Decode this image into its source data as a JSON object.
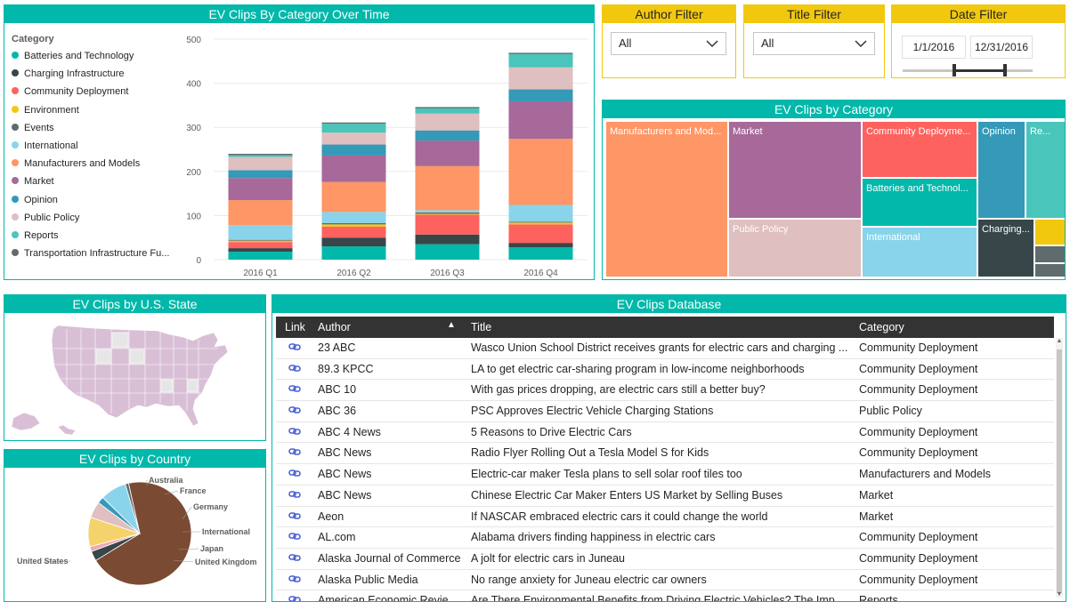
{
  "colors": {
    "accent": "#01b8aa",
    "filter_accent": "#f2c80f",
    "header_dark": "#333333",
    "link": "#4a5ed6"
  },
  "time_chart": {
    "title": "EV Clips By Category Over Time",
    "legend_title": "Category",
    "categories": [
      {
        "name": "Batteries and Technology",
        "color": "#01b8aa"
      },
      {
        "name": "Charging Infrastructure",
        "color": "#374649"
      },
      {
        "name": "Community Deployment",
        "color": "#fd625e"
      },
      {
        "name": "Environment",
        "color": "#f2c80f"
      },
      {
        "name": "Events",
        "color": "#5f6b6d"
      },
      {
        "name": "International",
        "color": "#8ad4eb"
      },
      {
        "name": "Manufacturers and Models",
        "color": "#fe9666"
      },
      {
        "name": "Market",
        "color": "#a66999"
      },
      {
        "name": "Opinion",
        "color": "#3599b8"
      },
      {
        "name": "Public Policy",
        "color": "#dfbfbf"
      },
      {
        "name": "Reports",
        "color": "#4ac5bb"
      },
      {
        "name": "Transportation Infrastructure Fu...",
        "color": "#5f6b6d"
      }
    ]
  },
  "chart_data": {
    "type": "bar",
    "stacked": true,
    "title": "EV Clips By Category Over Time",
    "legend_title": "Category",
    "categories": [
      "2016 Q1",
      "2016 Q2",
      "2016 Q3",
      "2016 Q4"
    ],
    "ylim": [
      0,
      500
    ],
    "yticks": [
      0,
      100,
      200,
      300,
      400,
      500
    ],
    "grid": true,
    "legend_position": "left",
    "series": [
      {
        "name": "Batteries and Technology",
        "values": [
          18,
          30,
          35,
          28
        ]
      },
      {
        "name": "Charging Infrastructure",
        "values": [
          8,
          20,
          22,
          10
        ]
      },
      {
        "name": "Community Deployment",
        "values": [
          14,
          25,
          45,
          42
        ]
      },
      {
        "name": "Environment",
        "values": [
          3,
          5,
          2,
          4
        ]
      },
      {
        "name": "Events",
        "values": [
          2,
          3,
          3,
          2
        ]
      },
      {
        "name": "International",
        "values": [
          33,
          25,
          5,
          38
        ]
      },
      {
        "name": "Manufacturers and Models",
        "values": [
          57,
          68,
          100,
          150
        ]
      },
      {
        "name": "Market",
        "values": [
          50,
          60,
          58,
          85
        ]
      },
      {
        "name": "Opinion",
        "values": [
          18,
          25,
          23,
          27
        ]
      },
      {
        "name": "Public Policy",
        "values": [
          30,
          27,
          38,
          50
        ]
      },
      {
        "name": "Reports",
        "values": [
          4,
          20,
          12,
          30
        ]
      },
      {
        "name": "Transportation Infrastructure Fu...",
        "values": [
          3,
          3,
          3,
          3
        ]
      }
    ]
  },
  "filters": {
    "author": {
      "title": "Author Filter",
      "value": "All"
    },
    "title": {
      "title": "Title Filter",
      "value": "All"
    },
    "date": {
      "title": "Date Filter",
      "start": "1/1/2016",
      "end": "12/31/2016",
      "range_start_fraction": 0.4,
      "range_end_fraction": 0.79
    }
  },
  "treemap": {
    "title": "EV Clips by Category",
    "tiles": [
      {
        "label": "Manufacturers and Mod...",
        "color": "#fe9666"
      },
      {
        "label": "Market",
        "color": "#a66999"
      },
      {
        "label": "Public Policy",
        "color": "#dfbfbf"
      },
      {
        "label": "Community Deployme...",
        "color": "#fd625e"
      },
      {
        "label": "Batteries and Technol...",
        "color": "#01b8aa"
      },
      {
        "label": "International",
        "color": "#8ad4eb"
      },
      {
        "label": "Opinion",
        "color": "#3599b8"
      },
      {
        "label": "Re...",
        "color": "#4ac5bb"
      },
      {
        "label": "Charging...",
        "color": "#374649"
      },
      {
        "label": "",
        "color": "#f2c80f"
      },
      {
        "label": "",
        "color": "#5f6b6d"
      },
      {
        "label": "",
        "color": "#5f6b6d"
      }
    ]
  },
  "state_map": {
    "title": "EV Clips by U.S. State",
    "fill_color": "#d9bfd6",
    "empty_color": "#e6e6e6"
  },
  "country_pie": {
    "title": "EV Clips by Country",
    "slices": [
      {
        "name": "United States",
        "value": 68,
        "color": "#7b4a33"
      },
      {
        "name": "United Kingdom",
        "value": 3,
        "color": "#374649"
      },
      {
        "name": "Japan",
        "value": 1.5,
        "color": "#f4a5b3"
      },
      {
        "name": "International",
        "value": 9,
        "color": "#f5d36c"
      },
      {
        "name": "Germany",
        "value": 5,
        "color": "#dfbfbf"
      },
      {
        "name": "France",
        "value": 2,
        "color": "#3599b8"
      },
      {
        "name": "Australia",
        "value": 8,
        "color": "#8ad4eb"
      },
      {
        "name": "",
        "value": 1,
        "color": "#5f6b6d"
      }
    ]
  },
  "database": {
    "title": "EV Clips Database",
    "columns": {
      "link": "Link",
      "author": "Author",
      "title": "Title",
      "category": "Category"
    },
    "sort_indicator": "▲",
    "rows": [
      {
        "author": "23 ABC",
        "title": "Wasco Union School District receives grants for electric cars and charging ...",
        "category": "Community Deployment"
      },
      {
        "author": "89.3 KPCC",
        "title": "LA to get electric car-sharing program in low-income neighborhoods",
        "category": "Community Deployment"
      },
      {
        "author": "ABC 10",
        "title": "With gas prices dropping, are electric cars still a better buy?",
        "category": "Community Deployment"
      },
      {
        "author": "ABC 36",
        "title": "PSC Approves Electric Vehicle Charging Stations",
        "category": "Public Policy"
      },
      {
        "author": "ABC 4 News",
        "title": "5 Reasons to Drive Electric Cars",
        "category": "Community Deployment"
      },
      {
        "author": "ABC News",
        "title": "Radio Flyer Rolling Out a Tesla Model S for Kids",
        "category": "Community Deployment"
      },
      {
        "author": "ABC News",
        "title": "Electric-car maker Tesla plans to sell solar roof tiles too",
        "category": "Manufacturers and Models"
      },
      {
        "author": "ABC News",
        "title": "Chinese Electric Car Maker Enters US Market by Selling Buses",
        "category": "Market"
      },
      {
        "author": "Aeon",
        "title": "If NASCAR embraced electric cars it could change the world",
        "category": "Market"
      },
      {
        "author": "AL.com",
        "title": "Alabama drivers finding happiness in electric cars",
        "category": "Community Deployment"
      },
      {
        "author": "Alaska Journal of Commerce",
        "title": "A jolt for electric cars in Juneau",
        "category": "Community Deployment"
      },
      {
        "author": "Alaska Public Media",
        "title": "No range anxiety for Juneau electric car owners",
        "category": "Community Deployment"
      },
      {
        "author": "American Economic Revie...",
        "title": "Are There Environmental Benefits from Driving Electric Vehicles? The Impo...",
        "category": "Reports"
      }
    ]
  }
}
